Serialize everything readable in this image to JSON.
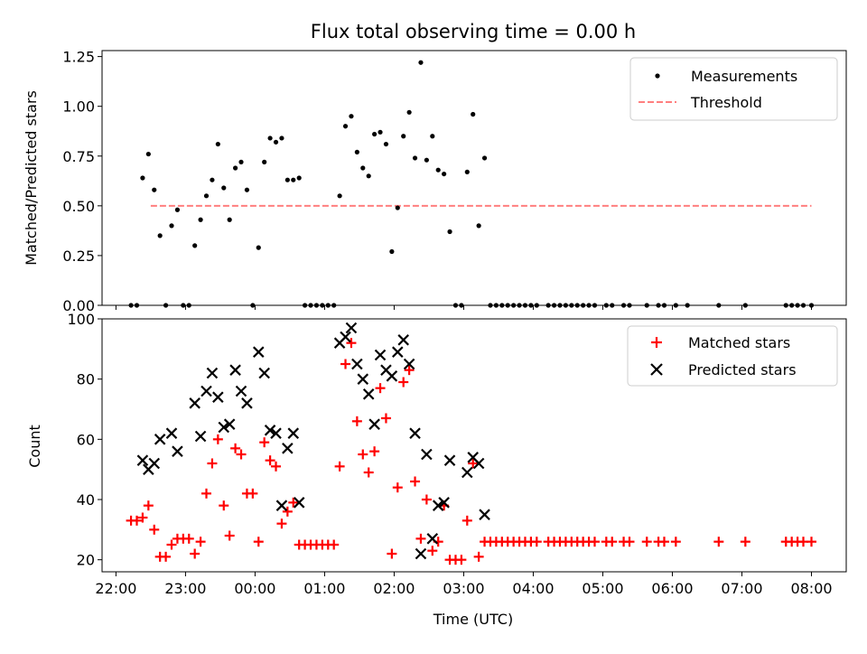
{
  "chart_data": {
    "type": "scatter",
    "title": "Flux total observing time = 0.00 h",
    "xlabel": "Time (UTC)",
    "x_ticks": [
      "22:00",
      "23:00",
      "00:00",
      "01:00",
      "02:00",
      "03:00",
      "04:00",
      "05:00",
      "06:00",
      "07:00",
      "08:00"
    ],
    "x_range_hours": [
      21.8,
      8.5
    ],
    "top_panel": {
      "ylabel": "Matched/Predicted stars",
      "ylim": [
        0,
        1.28
      ],
      "y_ticks": [
        "0.00",
        "0.25",
        "0.50",
        "0.75",
        "1.00",
        "1.25"
      ],
      "legend": {
        "placement": "top-right",
        "entries": [
          "Measurements",
          "Threshold"
        ]
      },
      "threshold": {
        "name": "Threshold",
        "value": 0.5,
        "color": "#ff7f7f",
        "x_start": "22:30",
        "x_end": "08:00"
      },
      "measurements": {
        "name": "Measurements",
        "color": "#000000",
        "points": [
          [
            "22:13",
            0.0
          ],
          [
            "22:18",
            0.0
          ],
          [
            "22:23",
            0.64
          ],
          [
            "22:28",
            0.76
          ],
          [
            "22:33",
            0.58
          ],
          [
            "22:38",
            0.35
          ],
          [
            "22:43",
            0.0
          ],
          [
            "22:48",
            0.4
          ],
          [
            "22:53",
            0.48
          ],
          [
            "22:58",
            0.0
          ],
          [
            "23:03",
            0.0
          ],
          [
            "23:08",
            0.3
          ],
          [
            "23:13",
            0.43
          ],
          [
            "23:18",
            0.55
          ],
          [
            "23:23",
            0.63
          ],
          [
            "23:28",
            0.81
          ],
          [
            "23:33",
            0.59
          ],
          [
            "23:38",
            0.43
          ],
          [
            "23:43",
            0.69
          ],
          [
            "23:48",
            0.72
          ],
          [
            "23:53",
            0.58
          ],
          [
            "23:58",
            0.0
          ],
          [
            "00:03",
            0.29
          ],
          [
            "00:08",
            0.72
          ],
          [
            "00:13",
            0.84
          ],
          [
            "00:18",
            0.82
          ],
          [
            "00:23",
            0.84
          ],
          [
            "00:28",
            0.63
          ],
          [
            "00:33",
            0.63
          ],
          [
            "00:38",
            0.64
          ],
          [
            "00:43",
            0.0
          ],
          [
            "00:48",
            0.0
          ],
          [
            "00:53",
            0.0
          ],
          [
            "00:58",
            0.0
          ],
          [
            "01:03",
            0.0
          ],
          [
            "01:08",
            0.0
          ],
          [
            "01:13",
            0.55
          ],
          [
            "01:18",
            0.9
          ],
          [
            "01:23",
            0.95
          ],
          [
            "01:28",
            0.77
          ],
          [
            "01:33",
            0.69
          ],
          [
            "01:38",
            0.65
          ],
          [
            "01:43",
            0.86
          ],
          [
            "01:48",
            0.87
          ],
          [
            "01:53",
            0.81
          ],
          [
            "01:58",
            0.27
          ],
          [
            "02:03",
            0.49
          ],
          [
            "02:08",
            0.85
          ],
          [
            "02:13",
            0.97
          ],
          [
            "02:18",
            0.74
          ],
          [
            "02:23",
            1.22
          ],
          [
            "02:28",
            0.73
          ],
          [
            "02:33",
            0.85
          ],
          [
            "02:38",
            0.68
          ],
          [
            "02:43",
            0.66
          ],
          [
            "02:48",
            0.37
          ],
          [
            "02:53",
            0.0
          ],
          [
            "02:58",
            0.0
          ],
          [
            "03:03",
            0.67
          ],
          [
            "03:08",
            0.96
          ],
          [
            "03:13",
            0.4
          ],
          [
            "03:18",
            0.74
          ],
          [
            "03:23",
            0.0
          ],
          [
            "03:28",
            0.0
          ],
          [
            "03:33",
            0.0
          ],
          [
            "03:38",
            0.0
          ],
          [
            "03:43",
            0.0
          ],
          [
            "03:48",
            0.0
          ],
          [
            "03:53",
            0.0
          ],
          [
            "03:58",
            0.0
          ],
          [
            "04:03",
            0.0
          ],
          [
            "04:13",
            0.0
          ],
          [
            "04:18",
            0.0
          ],
          [
            "04:23",
            0.0
          ],
          [
            "04:28",
            0.0
          ],
          [
            "04:33",
            0.0
          ],
          [
            "04:38",
            0.0
          ],
          [
            "04:43",
            0.0
          ],
          [
            "04:48",
            0.0
          ],
          [
            "04:53",
            0.0
          ],
          [
            "05:03",
            0.0
          ],
          [
            "05:08",
            0.0
          ],
          [
            "05:18",
            0.0
          ],
          [
            "05:23",
            0.0
          ],
          [
            "05:38",
            0.0
          ],
          [
            "05:48",
            0.0
          ],
          [
            "05:53",
            0.0
          ],
          [
            "06:03",
            0.0
          ],
          [
            "06:13",
            0.0
          ],
          [
            "06:40",
            0.0
          ],
          [
            "07:03",
            0.0
          ],
          [
            "07:38",
            0.0
          ],
          [
            "07:43",
            0.0
          ],
          [
            "07:48",
            0.0
          ],
          [
            "07:53",
            0.0
          ],
          [
            "08:00",
            0.0
          ]
        ]
      }
    },
    "bottom_panel": {
      "ylabel": "Count",
      "ylim": [
        16,
        100
      ],
      "y_ticks": [
        "20",
        "40",
        "60",
        "80",
        "100"
      ],
      "legend": {
        "placement": "top-right",
        "entries": [
          "Matched stars",
          "Predicted stars"
        ]
      },
      "matched": {
        "name": "Matched stars",
        "color": "#ff0000",
        "points": [
          [
            "22:13",
            33
          ],
          [
            "22:18",
            33
          ],
          [
            "22:23",
            34
          ],
          [
            "22:28",
            38
          ],
          [
            "22:33",
            30
          ],
          [
            "22:38",
            21
          ],
          [
            "22:43",
            21
          ],
          [
            "22:48",
            25
          ],
          [
            "22:53",
            27
          ],
          [
            "22:58",
            27
          ],
          [
            "23:03",
            27
          ],
          [
            "23:08",
            22
          ],
          [
            "23:13",
            26
          ],
          [
            "23:18",
            42
          ],
          [
            "23:23",
            52
          ],
          [
            "23:28",
            60
          ],
          [
            "23:33",
            38
          ],
          [
            "23:38",
            28
          ],
          [
            "23:43",
            57
          ],
          [
            "23:48",
            55
          ],
          [
            "23:53",
            42
          ],
          [
            "23:58",
            42
          ],
          [
            "00:03",
            26
          ],
          [
            "00:08",
            59
          ],
          [
            "00:13",
            53
          ],
          [
            "00:18",
            51
          ],
          [
            "00:23",
            32
          ],
          [
            "00:28",
            36
          ],
          [
            "00:33",
            39
          ],
          [
            "00:38",
            25
          ],
          [
            "00:43",
            25
          ],
          [
            "00:48",
            25
          ],
          [
            "00:53",
            25
          ],
          [
            "00:58",
            25
          ],
          [
            "01:03",
            25
          ],
          [
            "01:08",
            25
          ],
          [
            "01:13",
            51
          ],
          [
            "01:18",
            85
          ],
          [
            "01:23",
            92
          ],
          [
            "01:28",
            66
          ],
          [
            "01:33",
            55
          ],
          [
            "01:38",
            49
          ],
          [
            "01:43",
            56
          ],
          [
            "01:48",
            77
          ],
          [
            "01:53",
            67
          ],
          [
            "01:58",
            22
          ],
          [
            "02:03",
            44
          ],
          [
            "02:08",
            79
          ],
          [
            "02:13",
            83
          ],
          [
            "02:18",
            46
          ],
          [
            "02:23",
            27
          ],
          [
            "02:28",
            40
          ],
          [
            "02:33",
            23
          ],
          [
            "02:38",
            26
          ],
          [
            "02:43",
            38
          ],
          [
            "02:48",
            20
          ],
          [
            "02:53",
            20
          ],
          [
            "02:58",
            20
          ],
          [
            "03:03",
            33
          ],
          [
            "03:08",
            52
          ],
          [
            "03:13",
            21
          ],
          [
            "03:18",
            26
          ],
          [
            "03:23",
            26
          ],
          [
            "03:28",
            26
          ],
          [
            "03:33",
            26
          ],
          [
            "03:38",
            26
          ],
          [
            "03:43",
            26
          ],
          [
            "03:48",
            26
          ],
          [
            "03:53",
            26
          ],
          [
            "03:58",
            26
          ],
          [
            "04:03",
            26
          ],
          [
            "04:13",
            26
          ],
          [
            "04:18",
            26
          ],
          [
            "04:23",
            26
          ],
          [
            "04:28",
            26
          ],
          [
            "04:33",
            26
          ],
          [
            "04:38",
            26
          ],
          [
            "04:43",
            26
          ],
          [
            "04:48",
            26
          ],
          [
            "04:53",
            26
          ],
          [
            "05:03",
            26
          ],
          [
            "05:08",
            26
          ],
          [
            "05:18",
            26
          ],
          [
            "05:23",
            26
          ],
          [
            "05:38",
            26
          ],
          [
            "05:48",
            26
          ],
          [
            "05:53",
            26
          ],
          [
            "06:03",
            26
          ],
          [
            "06:40",
            26
          ],
          [
            "07:03",
            26
          ],
          [
            "07:38",
            26
          ],
          [
            "07:43",
            26
          ],
          [
            "07:48",
            26
          ],
          [
            "07:53",
            26
          ],
          [
            "08:00",
            26
          ]
        ]
      },
      "predicted": {
        "name": "Predicted stars",
        "color": "#000000",
        "points": [
          [
            "22:23",
            53
          ],
          [
            "22:28",
            50
          ],
          [
            "22:33",
            52
          ],
          [
            "22:38",
            60
          ],
          [
            "22:48",
            62
          ],
          [
            "22:53",
            56
          ],
          [
            "23:08",
            72
          ],
          [
            "23:13",
            61
          ],
          [
            "23:18",
            76
          ],
          [
            "23:23",
            82
          ],
          [
            "23:28",
            74
          ],
          [
            "23:33",
            64
          ],
          [
            "23:38",
            65
          ],
          [
            "23:43",
            83
          ],
          [
            "23:48",
            76
          ],
          [
            "23:53",
            72
          ],
          [
            "00:03",
            89
          ],
          [
            "00:08",
            82
          ],
          [
            "00:13",
            63
          ],
          [
            "00:18",
            62
          ],
          [
            "00:23",
            38
          ],
          [
            "00:28",
            57
          ],
          [
            "00:33",
            62
          ],
          [
            "00:38",
            39
          ],
          [
            "01:13",
            92
          ],
          [
            "01:18",
            94
          ],
          [
            "01:23",
            97
          ],
          [
            "01:28",
            85
          ],
          [
            "01:33",
            80
          ],
          [
            "01:38",
            75
          ],
          [
            "01:43",
            65
          ],
          [
            "01:48",
            88
          ],
          [
            "01:53",
            83
          ],
          [
            "01:58",
            81
          ],
          [
            "02:03",
            89
          ],
          [
            "02:08",
            93
          ],
          [
            "02:13",
            85
          ],
          [
            "02:18",
            62
          ],
          [
            "02:23",
            22
          ],
          [
            "02:28",
            55
          ],
          [
            "02:33",
            27
          ],
          [
            "02:38",
            38
          ],
          [
            "02:43",
            39
          ],
          [
            "02:48",
            53
          ],
          [
            "03:03",
            49
          ],
          [
            "03:08",
            54
          ],
          [
            "03:13",
            52
          ],
          [
            "03:18",
            35
          ]
        ]
      }
    }
  }
}
